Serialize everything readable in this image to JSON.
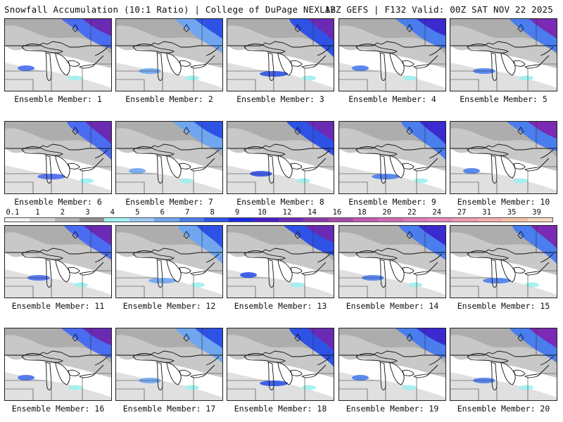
{
  "header": {
    "left_title": "Snowfall Accumulation (10:1 Ratio) | College of DuPage NEXLAB",
    "right_title": "12Z GEFS | F132 Valid: 00Z SAT NOV 22 2025"
  },
  "members": [
    {
      "label": "Ensemble Member: 1"
    },
    {
      "label": "Ensemble Member: 2"
    },
    {
      "label": "Ensemble Member: 3"
    },
    {
      "label": "Ensemble Member: 4"
    },
    {
      "label": "Ensemble Member: 5"
    },
    {
      "label": "Ensemble Member: 6"
    },
    {
      "label": "Ensemble Member: 7"
    },
    {
      "label": "Ensemble Member: 8"
    },
    {
      "label": "Ensemble Member: 9"
    },
    {
      "label": "Ensemble Member: 10"
    },
    {
      "label": "Ensemble Member: 11"
    },
    {
      "label": "Ensemble Member: 12"
    },
    {
      "label": "Ensemble Member: 13"
    },
    {
      "label": "Ensemble Member: 14"
    },
    {
      "label": "Ensemble Member: 15"
    },
    {
      "label": "Ensemble Member: 16"
    },
    {
      "label": "Ensemble Member: 17"
    },
    {
      "label": "Ensemble Member: 18"
    },
    {
      "label": "Ensemble Member: 19"
    },
    {
      "label": "Ensemble Member: 20"
    }
  ],
  "colorbar": {
    "labels": [
      "0.1",
      "1",
      "2",
      "3",
      "4",
      "5",
      "6",
      "7",
      "8",
      "9",
      "10",
      "12",
      "14",
      "16",
      "18",
      "20",
      "22",
      "24",
      "27",
      "31",
      "35",
      "39"
    ],
    "colors": [
      "#f2f2f2",
      "#d4d4d4",
      "#b4b4b4",
      "#8f8f8f",
      "#9ef0f0",
      "#9ccaf4",
      "#6fa6ef",
      "#4a7ded",
      "#2f52e6",
      "#1a2ae0",
      "#4a1ec8",
      "#6a2ab4",
      "#8a3aa8",
      "#a64aa8",
      "#c25ab0",
      "#d46ab6",
      "#e07ab8",
      "#e888b6",
      "#ee9ab0",
      "#f2aeaa",
      "#f4c2a8",
      "#f8d8c0"
    ]
  },
  "icons": {
    "map_panel": "great-lakes-map"
  }
}
